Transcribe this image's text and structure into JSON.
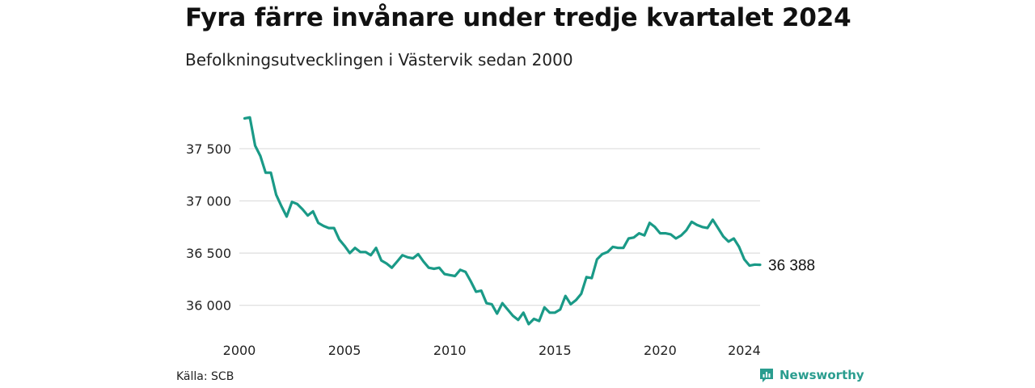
{
  "header": {
    "title": "Fyra färre invånare under tredje kvartalet 2024",
    "subtitle": "Befolkningsutvecklingen i Västervik sedan 2000"
  },
  "footer": {
    "source": "Källa: SCB",
    "brand": "Newsworthy"
  },
  "colors": {
    "line": "#1a9a87",
    "grid": "#dddddd",
    "brand": "#2a9d8f"
  },
  "chart_data": {
    "type": "line",
    "x_tick_labels": [
      "2000",
      "2005",
      "2010",
      "2015",
      "2020",
      "2024"
    ],
    "x_ticks": [
      2000,
      2005,
      2010,
      2015,
      2020,
      2024
    ],
    "y_ticks": [
      36000,
      36500,
      37000,
      37500
    ],
    "y_tick_labels": [
      "36 000",
      "36 500",
      "37 000",
      "37 500"
    ],
    "xlim": [
      2000,
      2024.75
    ],
    "ylim": [
      35750,
      38150
    ],
    "grid": "horizontal",
    "last_value_label": "36 388",
    "series": [
      {
        "x": [
          2000.25,
          2000.5,
          2000.75,
          2001,
          2001.25,
          2001.5,
          2001.75,
          2002,
          2002.25,
          2002.5,
          2002.75,
          2003,
          2003.25,
          2003.5,
          2003.75,
          2004,
          2004.25,
          2004.5,
          2004.75,
          2005,
          2005.25,
          2005.5,
          2005.75,
          2006,
          2006.25,
          2006.5,
          2006.75,
          2007,
          2007.25,
          2007.5,
          2007.75,
          2008,
          2008.25,
          2008.5,
          2008.75,
          2009,
          2009.25,
          2009.5,
          2009.75,
          2010,
          2010.25,
          2010.5,
          2010.75,
          2011,
          2011.25,
          2011.5,
          2011.75,
          2012,
          2012.25,
          2012.5,
          2012.75,
          2013,
          2013.25,
          2013.5,
          2013.75,
          2014,
          2014.25,
          2014.5,
          2014.75,
          2015,
          2015.25,
          2015.5,
          2015.75,
          2016,
          2016.25,
          2016.5,
          2016.75,
          2017,
          2017.25,
          2017.5,
          2017.75,
          2018,
          2018.25,
          2018.5,
          2018.75,
          2019,
          2019.25,
          2019.5,
          2019.75,
          2020,
          2020.25,
          2020.5,
          2020.75,
          2021,
          2021.25,
          2021.5,
          2021.75,
          2022,
          2022.25,
          2022.5,
          2022.75,
          2023,
          2023.25,
          2023.5,
          2023.75,
          2024,
          2024.25,
          2024.5,
          2024.75
        ],
        "values": [
          37790,
          37800,
          37530,
          37430,
          37270,
          37270,
          37060,
          36950,
          36850,
          36990,
          36970,
          36920,
          36860,
          36900,
          36790,
          36760,
          36740,
          36740,
          36630,
          36570,
          36500,
          36550,
          36510,
          36510,
          36480,
          36550,
          36430,
          36400,
          36360,
          36420,
          36480,
          36460,
          36450,
          36490,
          36420,
          36360,
          36350,
          36360,
          36300,
          36290,
          36280,
          36340,
          36320,
          36230,
          36130,
          36140,
          36020,
          36010,
          35920,
          36020,
          35960,
          35900,
          35860,
          35930,
          35820,
          35870,
          35850,
          35980,
          35930,
          35930,
          35960,
          36090,
          36010,
          36050,
          36110,
          36270,
          36260,
          36440,
          36490,
          36510,
          36560,
          36550,
          36550,
          36640,
          36650,
          36690,
          36670,
          36790,
          36750,
          36690,
          36690,
          36680,
          36640,
          36670,
          36720,
          36800,
          36770,
          36750,
          36740,
          36820,
          36740,
          36660,
          36610,
          36640,
          36560,
          36440,
          36380,
          36390,
          36388
        ]
      }
    ]
  }
}
